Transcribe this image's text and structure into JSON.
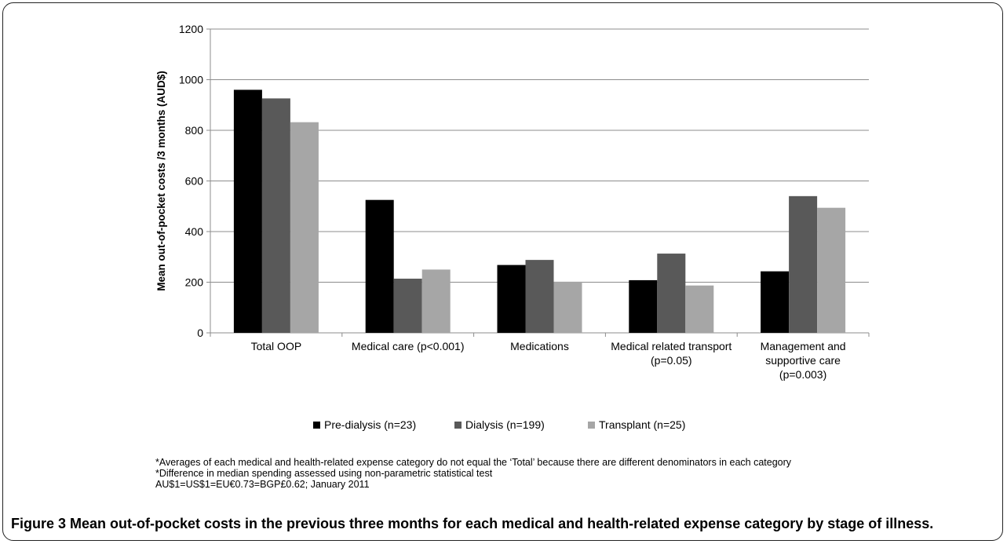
{
  "chart_data": {
    "type": "bar",
    "ylabel": "Mean out-of-pocket  costs /3 months (AUD$)",
    "xlabel": "",
    "ylim": [
      0,
      1200
    ],
    "yticks": [
      0,
      200,
      400,
      600,
      800,
      1000,
      1200
    ],
    "grid": true,
    "legend_position": "bottom",
    "categories": [
      [
        "Total OOP"
      ],
      [
        "Medical care (p<0.001)"
      ],
      [
        "Medications"
      ],
      [
        "Medical related transport",
        "(p=0.05)"
      ],
      [
        "Management and",
        "supportive care",
        "(p=0.003)"
      ]
    ],
    "series": [
      {
        "name": "Pre-dialysis (n=23)",
        "color": "#000000",
        "values": [
          960,
          525,
          268,
          208,
          243
        ]
      },
      {
        "name": "Dialysis (n=199)",
        "color": "#595959",
        "values": [
          926,
          214,
          288,
          313,
          540
        ]
      },
      {
        "name": "Transplant (n=25)",
        "color": "#a6a6a6",
        "values": [
          832,
          250,
          202,
          187,
          494
        ]
      }
    ]
  },
  "footnotes": [
    "*Averages of each medical and health-related  expense category do not equal the ‘Total’ because there are different denominators in each category",
    "*Difference  in median spending assessed using non-parametric  statistical test",
    "AU$1=US$1=EU€0.73=BGP£0.62;  January 2011"
  ],
  "caption": {
    "label": "Figure 3",
    "text": " Mean out-of-pocket costs in the previous three months for each medical and health-related expense category by stage of illness."
  }
}
